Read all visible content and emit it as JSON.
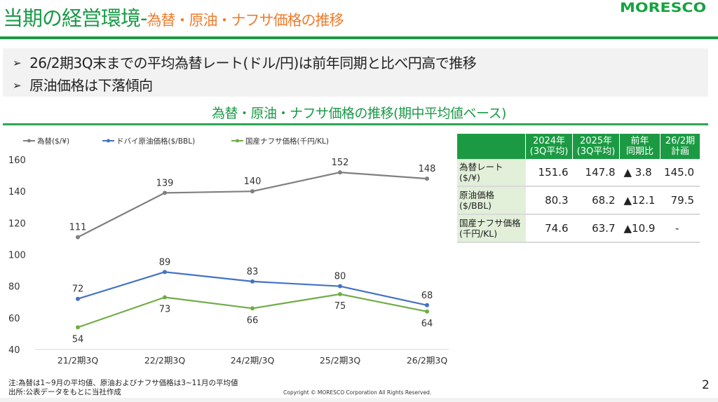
{
  "header": {
    "title_main": "当期の経営環境-",
    "title_sub": "為替・原油・ナフサ価格の推移",
    "logo": "MORESCO"
  },
  "bullets": [
    {
      "icon": "arrowhead-bullet-icon",
      "mark": "➢",
      "text": "26/2期3Q末までの平均為替レート(ドル/円)は前年同期と比べ円高で推移"
    },
    {
      "icon": "arrowhead-bullet-icon",
      "mark": "➢",
      "text": "原油価格は下落傾向"
    }
  ],
  "chart_heading": "為替・原油・ナフサ価格の推移(期中平均値ベース)",
  "chart_data": {
    "type": "line",
    "title": "為替・原油・ナフサ価格の推移(期中平均値ベース)",
    "xlabel": "",
    "ylabel": "",
    "categories": [
      "21/2期3Q",
      "22/2期3Q",
      "24/2期/3Q",
      "25/2期3Q",
      "26/2期3Q"
    ],
    "ylim": [
      40,
      160
    ],
    "yticks": [
      40,
      60,
      80,
      100,
      120,
      140,
      160
    ],
    "grid": false,
    "legend_position": "top-left",
    "series": [
      {
        "name": "為替($/¥)",
        "color": "#7f7f7f",
        "values": [
          111,
          139,
          140,
          152,
          148
        ],
        "label_position": "above"
      },
      {
        "name": "ドバイ原油価格($/BBL)",
        "color": "#4472c4",
        "values": [
          72,
          89,
          83,
          80,
          68
        ],
        "label_position": "above"
      },
      {
        "name": "国産ナフサ価格(千円/KL)",
        "color": "#70ad47",
        "values": [
          54,
          73,
          66,
          75,
          64
        ],
        "label_position": "below"
      }
    ]
  },
  "table": {
    "headers": [
      "",
      "2024年\n(3Q平均)",
      "2025年\n(3Q平均)",
      "前年\n同期比",
      "26/2期\n計画"
    ],
    "header_lines": [
      [
        "",
        ""
      ],
      [
        "2024年",
        "(3Q平均)"
      ],
      [
        "2025年",
        "(3Q平均)"
      ],
      [
        "前年",
        "同期比"
      ],
      [
        "26/2期",
        "計画"
      ]
    ],
    "rows": [
      {
        "label_line1": "為替レート",
        "label_line2": "($/¥)",
        "y2024": "151.6",
        "y2025": "147.8",
        "change": "▲ 3.8",
        "plan": "145.0"
      },
      {
        "label_line1": "原油価格",
        "label_line2": "($/BBL)",
        "y2024": "80.3",
        "y2025": "68.2",
        "change": "▲12.1",
        "plan": "79.5"
      },
      {
        "label_line1": "国産ナフサ価格",
        "label_line2": "(千円/KL)",
        "y2024": "74.6",
        "y2025": "63.7",
        "change": "▲10.9",
        "plan": "-"
      }
    ]
  },
  "footer": {
    "note_line1": "注:為替は1~9月の平均値、原油およびナフサ価格は3~11月の平均値",
    "note_line2": "出所:公表データをもとに当社作成",
    "copyright": "Copyright © MORESCO Corporation All Rights Reserved.",
    "page_number": "2"
  },
  "colors": {
    "brand_green": "#1a9a47",
    "title_orange": "#ee7d2e",
    "table_header": "#1c9a43",
    "table_label_bg": "#e2efd9"
  }
}
